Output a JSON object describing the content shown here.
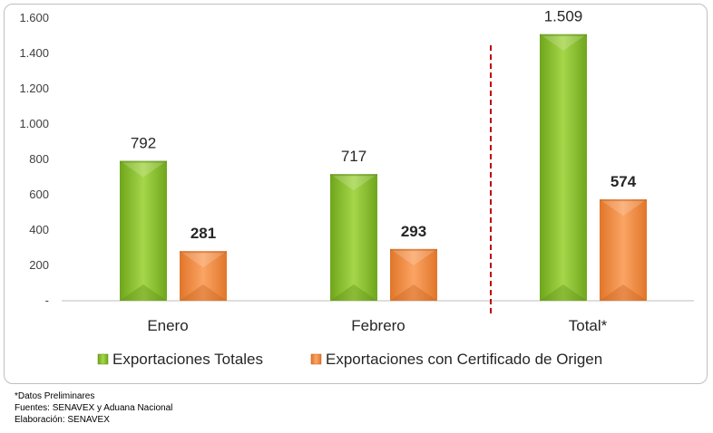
{
  "chart_data": {
    "type": "bar",
    "categories": [
      "Enero",
      "Febrero",
      "Total*"
    ],
    "series": [
      {
        "name": "Exportaciones Totales",
        "values": [
          792,
          717,
          1509
        ],
        "labels": [
          "792",
          "717",
          "1.509"
        ],
        "color": "#8cc63f"
      },
      {
        "name": "Exportaciones con Certificado de Origen",
        "values": [
          281,
          293,
          574
        ],
        "labels": [
          "281",
          "293",
          "574"
        ],
        "color": "#f79646"
      }
    ],
    "ylim": [
      0,
      1600
    ],
    "yticks": [
      {
        "value": 0,
        "label": "-"
      },
      {
        "value": 200,
        "label": "200"
      },
      {
        "value": 400,
        "label": "400"
      },
      {
        "value": 600,
        "label": "600"
      },
      {
        "value": 800,
        "label": "800"
      },
      {
        "value": 1000,
        "label": "1.000"
      },
      {
        "value": 1200,
        "label": "1.200"
      },
      {
        "value": 1400,
        "label": "1.400"
      },
      {
        "value": 1600,
        "label": "1.600"
      }
    ],
    "separator_color": "#c00000",
    "legend_position": "bottom",
    "grid": false
  },
  "notes": [
    "*Datos Preliminares",
    "Fuentes: SENAVEX y Aduana Nacional",
    "Elaboración: SENAVEX"
  ]
}
